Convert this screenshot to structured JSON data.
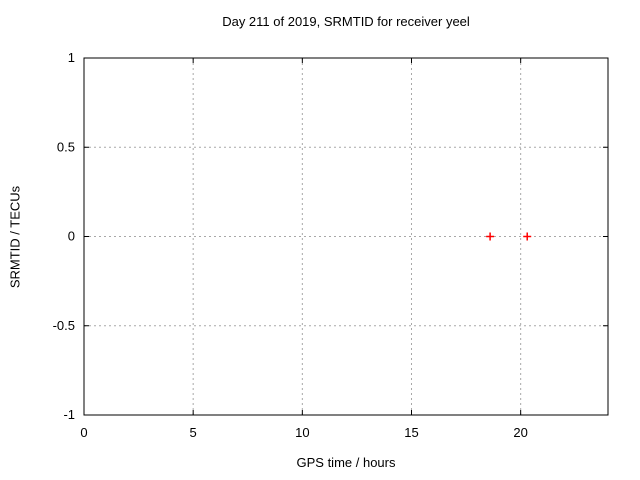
{
  "chart_data": {
    "type": "scatter",
    "title": "Day 211 of 2019, SRMTID for receiver yeel",
    "xlabel": "GPS time / hours",
    "ylabel": "SRMTID / TECUs",
    "xlim": [
      0,
      24
    ],
    "ylim": [
      -1,
      1
    ],
    "xticks": [
      {
        "value": 0,
        "label": "0"
      },
      {
        "value": 5,
        "label": "5"
      },
      {
        "value": 10,
        "label": "10"
      },
      {
        "value": 15,
        "label": "15"
      },
      {
        "value": 20,
        "label": "20"
      }
    ],
    "yticks": [
      {
        "value": 1,
        "label": "1"
      },
      {
        "value": 0.5,
        "label": "0.5"
      },
      {
        "value": 0,
        "label": "0"
      },
      {
        "value": -0.5,
        "label": "-0.5"
      },
      {
        "value": -1,
        "label": "-1"
      }
    ],
    "grid": true,
    "legend_position": "none",
    "series": [
      {
        "name": "SRMTID",
        "marker": "plus",
        "color": "#ff0000",
        "points": [
          {
            "x": 18.6,
            "y": 0.0
          },
          {
            "x": 20.3,
            "y": 0.0
          }
        ]
      }
    ],
    "colors": {
      "background": "#ffffff",
      "axis": "#000000",
      "grid": "#a8a8a8",
      "text": "#000000"
    }
  }
}
